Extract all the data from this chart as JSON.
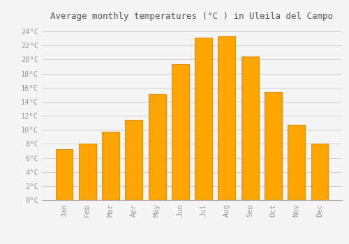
{
  "title": "Average monthly temperatures (°C ) in Uleila del Campo",
  "months": [
    "Jan",
    "Feb",
    "Mar",
    "Apr",
    "May",
    "Jun",
    "Jul",
    "Aug",
    "Sep",
    "Oct",
    "Nov",
    "Dec"
  ],
  "values": [
    7.2,
    8.0,
    9.7,
    11.4,
    15.1,
    19.3,
    23.1,
    23.3,
    20.4,
    15.4,
    10.7,
    8.0
  ],
  "bar_color": "#FFA500",
  "bar_edge_color": "#E8900A",
  "background_color": "#f5f5f5",
  "grid_color": "#cccccc",
  "title_color": "#555555",
  "tick_label_color": "#999999",
  "ylim": [
    0,
    25
  ],
  "ytick_step": 2,
  "title_fontsize": 9,
  "tick_fontsize": 7.5,
  "bar_width": 0.75
}
